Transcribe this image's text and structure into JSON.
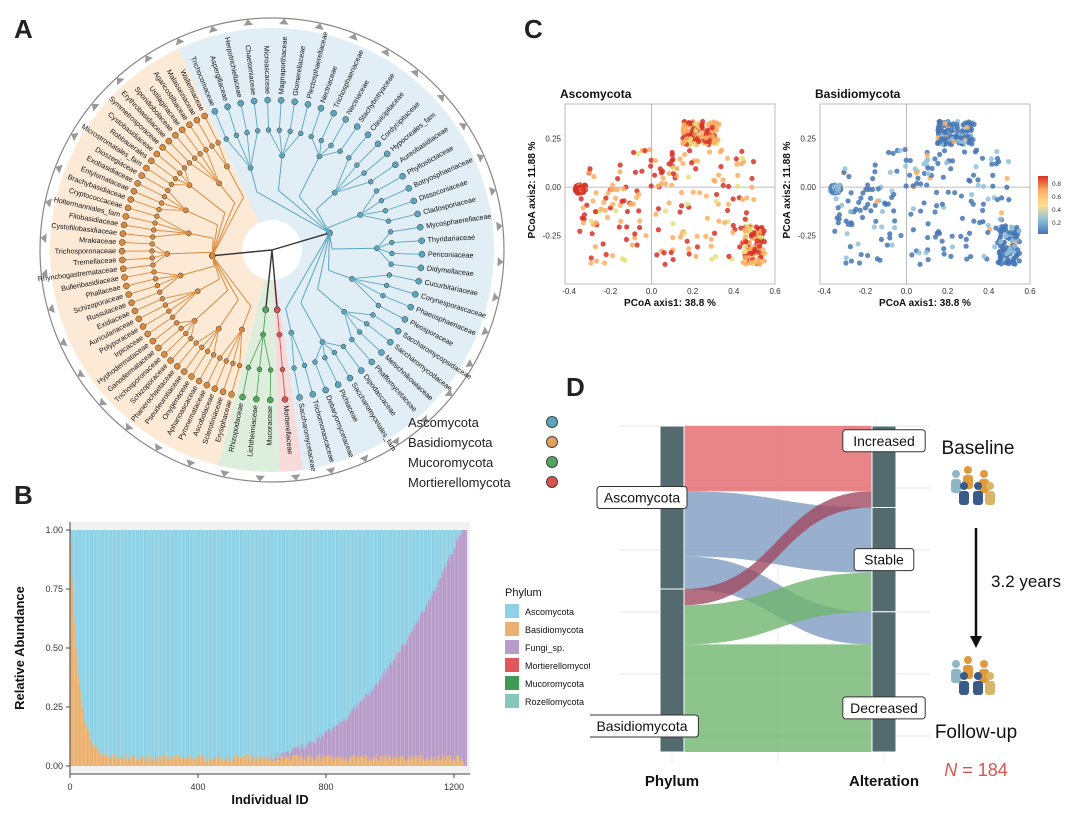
{
  "panels": {
    "a": "A",
    "b": "B",
    "c": "C",
    "d": "D"
  },
  "panel_a": {
    "phyla_legend": [
      {
        "label": "Ascomycota",
        "color": "#5aa6c0"
      },
      {
        "label": "Basidiomycota",
        "color": "#e2a05a"
      },
      {
        "label": "Mucoromycota",
        "color": "#4fa85c"
      },
      {
        "label": "Mortierellomycota",
        "color": "#d9534f"
      }
    ],
    "ascomycota_families": [
      "Trichocomaceae",
      "Aspergillaceae",
      "Herpotrichiellaceae",
      "Chaetomiaceae",
      "Microascaceae",
      "Magnaporthaceae",
      "Glomerellaceae",
      "Plectosphaerellaceae",
      "Nectriaceae",
      "Trichosphaeriaceae",
      "Nectriaceae",
      "Stachybotryaceae",
      "Clavicipitaceae",
      "Cordycipitaceae",
      "Hypocreales_fam",
      "Aureobasidiaceae",
      "Phyllostictaceae",
      "Botryosphaeriaceae",
      "Dissoconiaceae",
      "Cladosporiaceae",
      "Mycosphaerellaceae",
      "Thyridariaceae",
      "Periconiaceae",
      "Didymellaceae",
      "Cucurbitariaceae",
      "Corynesporascaceae",
      "Phaeosphaeriaceae",
      "Pleosporaceae",
      "Saccharomycopsidaceae",
      "Saccharomycodaceae",
      "Metschnikowiaceae",
      "Phaffomycetaceae",
      "Dipodascaceae",
      "Saccharomycetales_fam",
      "Pichiaceae",
      "Debaryomycetaceae",
      "Trichomonascaceae",
      "Saccharomycetaceae"
    ],
    "basidiomycota_families": [
      "Erysiphaceae",
      "Sclerotiniaceae",
      "Ascobolaceae",
      "Pyronemataceae",
      "Aphanoascaceae",
      "Onygenaceae",
      "Pseudeurotiaceae",
      "Phanerochaetaceae",
      "Schizoporaceae",
      "Trichosporonaceae",
      "Ganodermataceae",
      "Hyphodermataceae",
      "Irpicaceae",
      "Polyporaceae",
      "Auriculariaceae",
      "Exidiaceae",
      "Russulaceae",
      "Schizoporaceae",
      "Phallaceae",
      "Bulleribasidiaceae",
      "Rhynchogastremataceae",
      "Tremellaceae",
      "Trichosporonaceae",
      "Mrakiaceae",
      "Cystofilobasidiaceae",
      "Filobasidiaceae",
      "Holtermanniales_fam",
      "Cryptococcaceae",
      "Brachybasidiaceae",
      "Entylomataceae",
      "Exobasidiaceae",
      "Dioszegiaceae",
      "Microstromatales_fam",
      "Robbauerales",
      "Cystobasidiaceae",
      "Symmetrosporaceae",
      "Erythrobasidiaceae",
      "Sporidiobolaceae",
      "Ustilaginaceae",
      "Agaricostilbaceae",
      "Malasseziaceae",
      "Wallemiaceae"
    ],
    "mucoromycota_families": [
      "Mucoraceae",
      "Lichtheimiaceae",
      "Rhizopodaceae"
    ],
    "mortierellomycota_families": [
      "Mortierellaceae"
    ]
  },
  "panel_b": {
    "chart_data": {
      "type": "bar",
      "xlabel": "Individual ID",
      "ylabel": "Relative Abundance",
      "xticks": [
        "0",
        "400",
        "800",
        "1200"
      ],
      "yticks": [
        "0.00",
        "0.25",
        "0.50",
        "0.75",
        "1.00"
      ],
      "xlim": [
        0,
        1250
      ],
      "ylim": [
        0,
        1
      ],
      "n_individuals": 1240,
      "legend_title": "Phylum",
      "series": [
        {
          "name": "Ascomycota",
          "color": "#8fd2e6"
        },
        {
          "name": "Basidiomycota",
          "color": "#eab272"
        },
        {
          "name": "Fungi_sp.",
          "color": "#b79cc9"
        },
        {
          "name": "Mortierellomycota",
          "color": "#e0565a"
        },
        {
          "name": "Mucoromycota",
          "color": "#3f9a55"
        },
        {
          "name": "Rozellomycota",
          "color": "#86c7b8"
        }
      ]
    }
  },
  "panel_c": {
    "chart_data": [
      {
        "type": "scatter",
        "title": "Ascomycota",
        "xlabel": "PCoA axis1:  38.8 %",
        "ylabel": "PCoA axis2:  11.88 %",
        "xticks": [
          "-0.4",
          "-0.2",
          "0.0",
          "0.2",
          "0.4",
          "0.6"
        ],
        "yticks": [
          "0.25",
          "0.00",
          "-0.25"
        ],
        "xlim": [
          -0.42,
          0.6
        ],
        "ylim": [
          -0.48,
          0.45
        ],
        "color_scale": "high values dominant (red)"
      },
      {
        "type": "scatter",
        "title": "Basidiomycota",
        "xlabel": "PCoA axis1:  38.8 %",
        "ylabel": "PCoA axis2:  11.88 %",
        "xticks": [
          "-0.4",
          "-0.2",
          "0.0",
          "0.2",
          "0.4",
          "0.6"
        ],
        "yticks": [
          "0.25",
          "0.00",
          "-0.25"
        ],
        "xlim": [
          -0.42,
          0.6
        ],
        "ylim": [
          -0.48,
          0.45
        ],
        "color_scale": "low values dominant (blue)"
      }
    ],
    "colorbar": {
      "ticks": [
        "0.8",
        "0.6",
        "0.4",
        "0.2"
      ],
      "colors": [
        "#d73027",
        "#fdae61",
        "#fee090",
        "#91bfdb",
        "#4575b4"
      ]
    }
  },
  "panel_d": {
    "chart_data": {
      "type": "alluvial",
      "axis_labels": [
        "Phylum",
        "Alteration"
      ],
      "source_nodes": [
        "Ascomycota",
        "Basidiomycota"
      ],
      "target_nodes": [
        "Increased",
        "Stable",
        "Decreased"
      ],
      "flows": [
        {
          "from": "Ascomycota",
          "to": "Increased",
          "value": 0.2,
          "color": "#e3656b"
        },
        {
          "from": "Ascomycota",
          "to": "Stable",
          "value": 0.2,
          "color": "#7e9cc2"
        },
        {
          "from": "Ascomycota",
          "to": "Decreased",
          "value": 0.1,
          "color": "#7e9cc2"
        },
        {
          "from": "Basidiomycota",
          "to": "Increased",
          "value": 0.05,
          "color": "#a04a63"
        },
        {
          "from": "Basidiomycota",
          "to": "Stable",
          "value": 0.12,
          "color": "#6fb56f"
        },
        {
          "from": "Basidiomycota",
          "to": "Decreased",
          "value": 0.33,
          "color": "#6fb56f"
        }
      ]
    },
    "timeline": {
      "top": "Baseline",
      "interval": "3.2 years",
      "bottom": "Follow-up",
      "n_italic": "N",
      "n_rest": " = 184"
    }
  }
}
